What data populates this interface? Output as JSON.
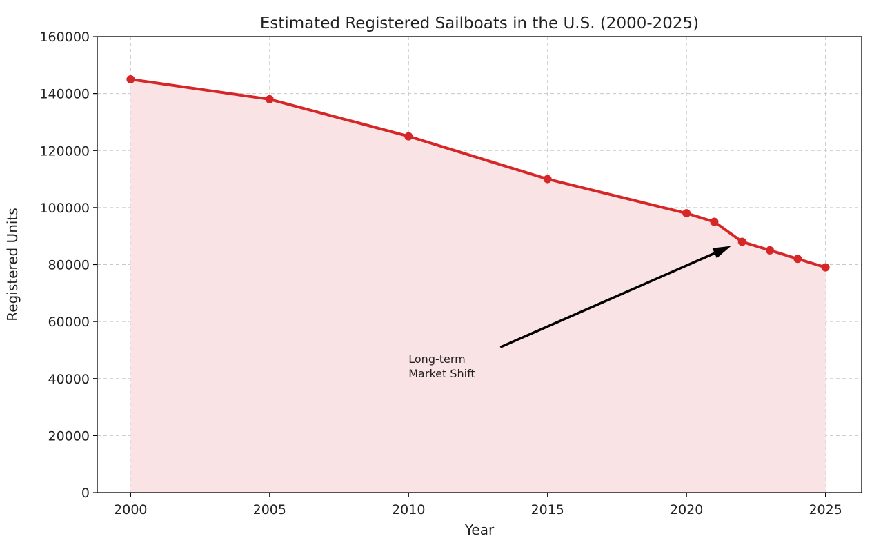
{
  "chart_data": {
    "type": "area",
    "title": "Estimated Registered Sailboats in the U.S. (2000-2025)",
    "xlabel": "Year",
    "ylabel": "Registered Units",
    "x": [
      2000,
      2005,
      2010,
      2015,
      2020,
      2021,
      2022,
      2023,
      2024,
      2025
    ],
    "series": [
      {
        "values": [
          145000,
          138000,
          125000,
          110000,
          98000,
          95000,
          88000,
          85000,
          82000,
          79000
        ]
      }
    ],
    "x_ticks": [
      2000,
      2005,
      2010,
      2015,
      2020,
      2025
    ],
    "y_ticks": [
      0,
      20000,
      40000,
      60000,
      80000,
      100000,
      120000,
      140000,
      160000
    ],
    "xlim": [
      1998.8,
      2026.3
    ],
    "ylim": [
      0,
      160000
    ],
    "grid": true,
    "colors": {
      "line": "#d62728",
      "fill": "#f9e3e4"
    },
    "annotation": {
      "lines": [
        "Long-term",
        "Market Shift"
      ],
      "text_at": [
        2010,
        45000
      ],
      "arrow_from": [
        2013.3,
        51000
      ],
      "arrow_to": [
        2021.6,
        86500
      ]
    }
  }
}
